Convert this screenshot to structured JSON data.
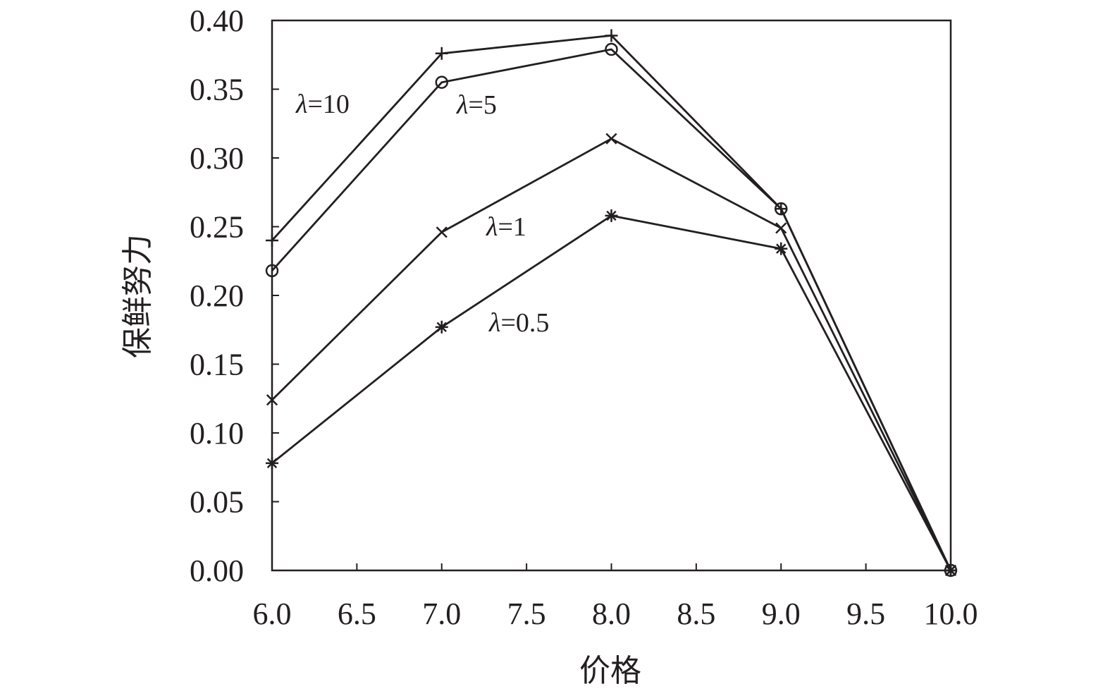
{
  "chart_data": {
    "type": "line",
    "title": "",
    "xlabel": "价格",
    "ylabel": "保鲜努力",
    "xlim": [
      6.0,
      10.0
    ],
    "ylim": [
      0.0,
      0.4
    ],
    "x_ticks": [
      "6.0",
      "6.5",
      "7.0",
      "7.5",
      "8.0",
      "8.5",
      "9.0",
      "9.5",
      "10.0"
    ],
    "y_ticks": [
      "0.00",
      "0.05",
      "0.10",
      "0.15",
      "0.20",
      "0.25",
      "0.30",
      "0.35",
      "0.40"
    ],
    "grid": false,
    "line_color": "#231f20",
    "x": [
      6.0,
      7.0,
      8.0,
      9.0,
      10.0
    ],
    "series": [
      {
        "name": "λ=10",
        "lambda_symbol": "λ",
        "lambda_value": "=10",
        "marker": "plus",
        "values": [
          0.24,
          0.376,
          0.389,
          0.263,
          0.0
        ]
      },
      {
        "name": "λ=5",
        "lambda_symbol": "λ",
        "lambda_value": "=5",
        "marker": "circle",
        "values": [
          0.218,
          0.355,
          0.379,
          0.263,
          0.0
        ]
      },
      {
        "name": "λ=1",
        "lambda_symbol": "λ",
        "lambda_value": "=1",
        "marker": "x",
        "values": [
          0.124,
          0.246,
          0.314,
          0.249,
          0.0
        ]
      },
      {
        "name": "λ=0.5",
        "lambda_symbol": "λ",
        "lambda_value": "=0.5",
        "marker": "asterisk",
        "values": [
          0.078,
          0.177,
          0.258,
          0.234,
          0.0
        ]
      }
    ]
  }
}
